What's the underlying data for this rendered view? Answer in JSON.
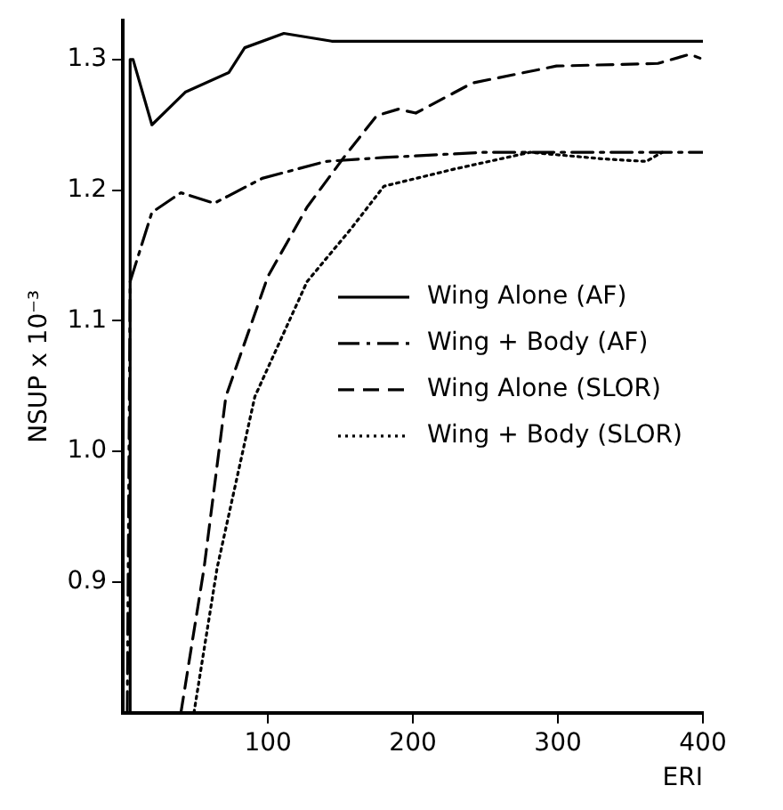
{
  "chart_data": {
    "type": "line",
    "xlabel": "ERI",
    "ylabel": "NSUP x 10⁻³",
    "xlim": [
      0,
      400
    ],
    "xticks": [
      100,
      200,
      300,
      400
    ],
    "ylim": [
      0.8,
      1.33
    ],
    "yticks": [
      0.9,
      {
        "value": 1.0,
        "label": "1.0"
      },
      1.1,
      1.2,
      1.3
    ],
    "grid": false,
    "legend": "right",
    "marker": "none",
    "series": [
      {
        "name": "Wing Alone (AF)",
        "color": "#000000",
        "line_style": "solid",
        "x": [
          5,
          5,
          7,
          20,
          43,
          73,
          84,
          111,
          144,
          200,
          300,
          400
        ],
        "values": [
          0.8,
          1.3,
          1.3,
          1.25,
          1.275,
          1.29,
          1.309,
          1.32,
          1.314,
          1.314,
          1.314,
          1.314
        ]
      },
      {
        "name": "Wing + Body (AF)",
        "color": "#000000",
        "line_style": "dashdot",
        "x": [
          3,
          5,
          20,
          40,
          63,
          96,
          140,
          180,
          250,
          320,
          400
        ],
        "values": [
          0.8,
          1.13,
          1.183,
          1.198,
          1.19,
          1.209,
          1.222,
          1.225,
          1.229,
          1.229,
          1.229
        ]
      },
      {
        "name": "Wing Alone (SLOR)",
        "color": "#000000",
        "line_style": "dashed",
        "x": [
          40,
          56,
          71,
          100,
          127,
          153,
          175,
          190,
          202,
          241,
          299,
          369,
          391,
          398
        ],
        "values": [
          0.8,
          0.911,
          1.042,
          1.134,
          1.187,
          1.226,
          1.257,
          1.262,
          1.259,
          1.282,
          1.295,
          1.297,
          1.304,
          1.301
        ]
      },
      {
        "name": "Wing + Body (SLOR)",
        "color": "#000000",
        "line_style": "dotted",
        "x": [
          49,
          65,
          91,
          127,
          157,
          180,
          228,
          281,
          330,
          361,
          372
        ],
        "values": [
          0.8,
          0.911,
          1.042,
          1.13,
          1.17,
          1.203,
          1.216,
          1.229,
          1.224,
          1.222,
          1.229
        ]
      }
    ]
  }
}
